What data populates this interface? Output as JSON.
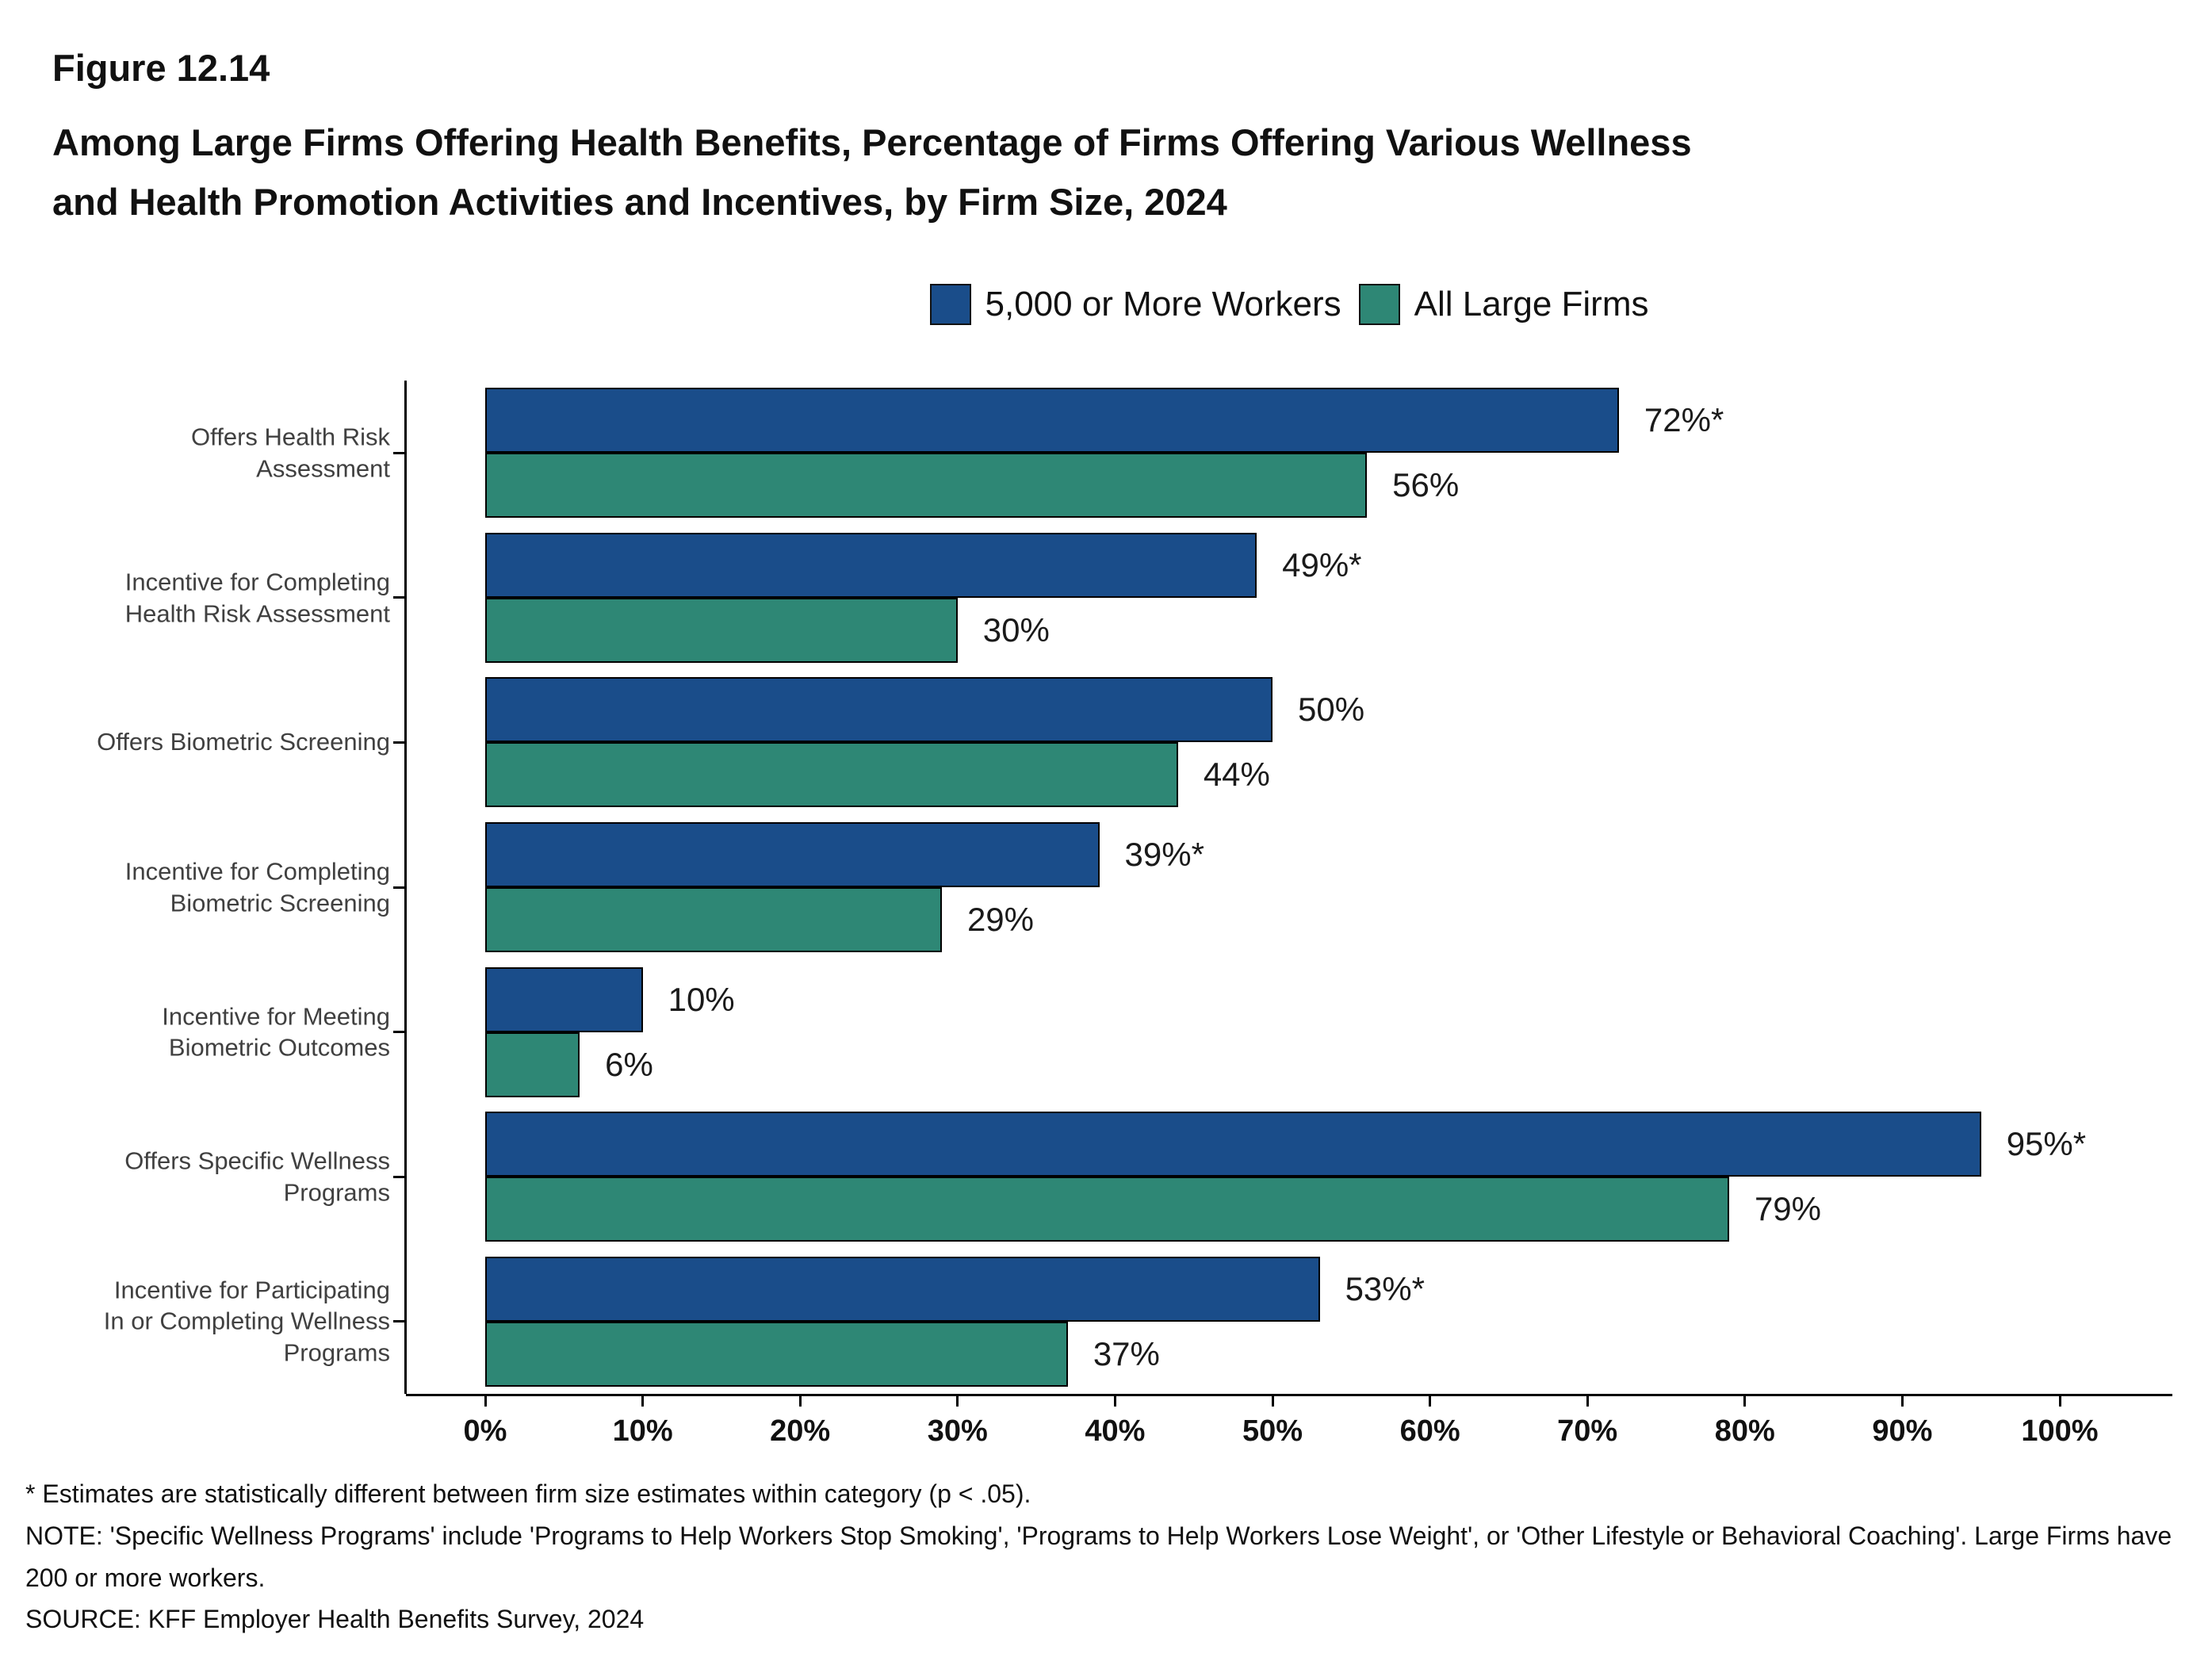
{
  "header": {
    "figure_label": "Figure 12.14",
    "title_lines": [
      "Among Large Firms Offering Health Benefits, Percentage of Firms Offering Various Wellness",
      "and Health Promotion Activities and Incentives, by Firm Size, 2024"
    ]
  },
  "chart_data": {
    "type": "bar",
    "orientation": "horizontal",
    "title": "Among Large Firms Offering Health Benefits, Percentage of Firms Offering Various Wellness and Health Promotion Activities and Incentives, by Firm Size, 2024",
    "categories": [
      "Offers Health Risk\nAssessment",
      "Incentive for Completing\nHealth Risk Assessment",
      "Offers Biometric Screening",
      "Incentive for Completing\nBiometric Screening",
      "Incentive for Meeting\nBiometric Outcomes",
      "Offers Specific Wellness\nPrograms",
      "Incentive for Participating\nIn or Completing Wellness\nPrograms"
    ],
    "series": [
      {
        "name": "5,000 or More Workers",
        "color": "#1A4D8A",
        "values": [
          72,
          49,
          50,
          39,
          10,
          95,
          53
        ],
        "labels": [
          "72%*",
          "49%*",
          "50%",
          "39%*",
          "10%",
          "95%*",
          "53%*"
        ]
      },
      {
        "name": "All Large Firms",
        "color": "#2E8775",
        "values": [
          56,
          30,
          44,
          29,
          6,
          79,
          37
        ],
        "labels": [
          "56%",
          "30%",
          "44%",
          "29%",
          "6%",
          "79%",
          "37%"
        ]
      }
    ],
    "xlim": [
      0,
      100
    ],
    "x_tick_labels": [
      "0%",
      "10%",
      "20%",
      "30%",
      "40%",
      "50%",
      "60%",
      "70%",
      "80%",
      "90%",
      "100%"
    ],
    "legend_position": "top",
    "grid": false
  },
  "footnotes": [
    "* Estimates are statistically different between firm size estimates within category (p < .05).",
    "NOTE: 'Specific Wellness Programs' include 'Programs to Help Workers Stop Smoking', 'Programs to Help Workers Lose Weight', or 'Other Lifestyle or Behavioral Coaching'. Large Firms have 200 or more workers.",
    "SOURCE: KFF Employer Health Benefits Survey, 2024"
  ]
}
